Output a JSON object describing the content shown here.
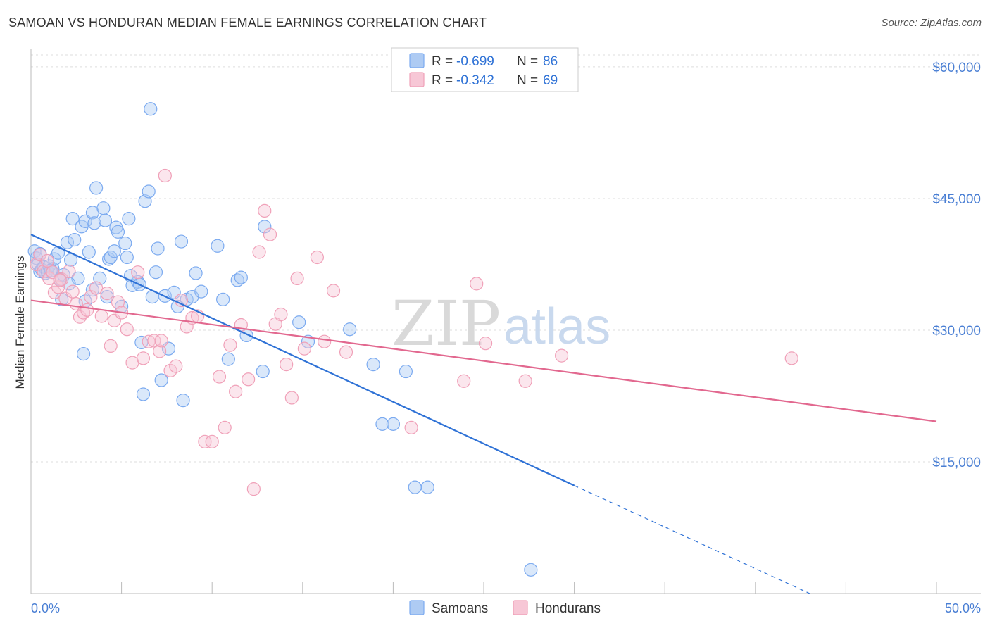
{
  "title": "SAMOAN VS HONDURAN MEDIAN FEMALE EARNINGS CORRELATION CHART",
  "source": "Source: ZipAtlas.com",
  "watermark": {
    "zip": "ZIP",
    "atlas": "atlas"
  },
  "colors": {
    "samoan": "#7baaf0",
    "samoan_fill": "#aecbf3",
    "samoan_line": "#2f72d6",
    "honduran": "#f0a0b8",
    "honduran_fill": "#f7c7d6",
    "honduran_line": "#e2688f",
    "axis_text": "#4a7fd4",
    "grid": "#dddddd"
  },
  "legend": {
    "samoan": {
      "r_label": "R =",
      "r_value": "-0.699",
      "n_label": "N =",
      "n_value": "86"
    },
    "honduran": {
      "r_label": "R =",
      "r_value": "-0.342",
      "n_label": "N =",
      "n_value": "69"
    }
  },
  "bottom_legend": [
    "Samoans",
    "Hondurans"
  ],
  "chart_data": {
    "type": "scatter",
    "title": "SAMOAN VS HONDURAN MEDIAN FEMALE EARNINGS CORRELATION CHART",
    "xlabel": "",
    "ylabel": "Median Female Earnings",
    "xlim": [
      0,
      50
    ],
    "ylim": [
      0,
      62000
    ],
    "x_tick_labels": [
      "0.0%",
      "50.0%"
    ],
    "y_ticks": [
      15000,
      30000,
      45000,
      60000
    ],
    "y_tick_labels": [
      "$15,000",
      "$30,000",
      "$45,000",
      "$60,000"
    ],
    "grid": true,
    "legend_position": "top-center",
    "series": [
      {
        "name": "Samoans",
        "trend": {
          "x0": 0.0,
          "y0": 40900,
          "x1": 30.0,
          "y1": 12300,
          "dashed_to_x": 43.0,
          "dashed_to_y": 0
        },
        "points": [
          [
            0.2,
            39000
          ],
          [
            0.3,
            38200
          ],
          [
            0.4,
            37500
          ],
          [
            0.5,
            36700
          ],
          [
            0.6,
            36900
          ],
          [
            0.7,
            37200
          ],
          [
            0.8,
            36500
          ],
          [
            0.9,
            36700
          ],
          [
            1.0,
            37300
          ],
          [
            1.2,
            37000
          ],
          [
            1.3,
            38100
          ],
          [
            1.5,
            38800
          ],
          [
            1.6,
            35800
          ],
          [
            1.7,
            33500
          ],
          [
            1.8,
            36300
          ],
          [
            2.0,
            40000
          ],
          [
            2.2,
            38000
          ],
          [
            2.3,
            42700
          ],
          [
            2.4,
            40300
          ],
          [
            2.6,
            35900
          ],
          [
            2.8,
            41800
          ],
          [
            3.0,
            42400
          ],
          [
            3.2,
            38900
          ],
          [
            3.4,
            43400
          ],
          [
            3.5,
            42200
          ],
          [
            3.6,
            46200
          ],
          [
            3.8,
            35900
          ],
          [
            4.0,
            43900
          ],
          [
            4.1,
            42500
          ],
          [
            4.3,
            38100
          ],
          [
            4.4,
            38300
          ],
          [
            4.6,
            39000
          ],
          [
            4.7,
            41700
          ],
          [
            4.8,
            41200
          ],
          [
            5.0,
            32700
          ],
          [
            5.2,
            39900
          ],
          [
            5.3,
            38300
          ],
          [
            5.4,
            42700
          ],
          [
            5.6,
            35100
          ],
          [
            5.9,
            35500
          ],
          [
            6.1,
            28600
          ],
          [
            6.3,
            44700
          ],
          [
            6.5,
            45800
          ],
          [
            6.7,
            33800
          ],
          [
            6.9,
            36600
          ],
          [
            7.0,
            39300
          ],
          [
            7.2,
            24300
          ],
          [
            7.4,
            33900
          ],
          [
            7.6,
            27900
          ],
          [
            7.9,
            34300
          ],
          [
            8.1,
            32700
          ],
          [
            8.3,
            40100
          ],
          [
            8.6,
            33500
          ],
          [
            8.9,
            33800
          ],
          [
            9.1,
            36500
          ],
          [
            9.4,
            34400
          ],
          [
            10.3,
            39600
          ],
          [
            10.6,
            33500
          ],
          [
            10.9,
            26700
          ],
          [
            11.4,
            35700
          ],
          [
            11.6,
            36000
          ],
          [
            11.9,
            29400
          ],
          [
            12.8,
            25300
          ],
          [
            12.9,
            41800
          ],
          [
            14.8,
            30900
          ],
          [
            15.3,
            28700
          ],
          [
            17.6,
            30100
          ],
          [
            18.9,
            26100
          ],
          [
            19.4,
            19300
          ],
          [
            20.0,
            19300
          ],
          [
            20.7,
            25300
          ],
          [
            21.2,
            12100
          ],
          [
            21.9,
            12100
          ],
          [
            27.6,
            2700
          ],
          [
            6.6,
            55200
          ],
          [
            2.9,
            27300
          ],
          [
            3.4,
            34600
          ],
          [
            4.2,
            33800
          ],
          [
            5.5,
            36200
          ],
          [
            6.0,
            35200
          ],
          [
            2.1,
            35300
          ],
          [
            1.1,
            36800
          ],
          [
            0.5,
            38700
          ],
          [
            8.4,
            22000
          ],
          [
            6.2,
            22700
          ],
          [
            3.0,
            33300
          ]
        ]
      },
      {
        "name": "Hondurans",
        "trend": {
          "x0": 0.0,
          "y0": 33400,
          "x1": 50.0,
          "y1": 19600
        },
        "points": [
          [
            0.3,
            37500
          ],
          [
            0.5,
            38600
          ],
          [
            0.7,
            36700
          ],
          [
            0.9,
            37900
          ],
          [
            1.0,
            35900
          ],
          [
            1.2,
            36600
          ],
          [
            1.3,
            34300
          ],
          [
            1.5,
            34900
          ],
          [
            1.7,
            35800
          ],
          [
            1.9,
            33600
          ],
          [
            2.1,
            36700
          ],
          [
            2.3,
            34400
          ],
          [
            2.5,
            33000
          ],
          [
            2.7,
            31500
          ],
          [
            2.9,
            32000
          ],
          [
            3.1,
            32300
          ],
          [
            3.3,
            33800
          ],
          [
            3.6,
            34800
          ],
          [
            3.9,
            31600
          ],
          [
            4.2,
            34200
          ],
          [
            4.4,
            28200
          ],
          [
            4.6,
            31100
          ],
          [
            4.8,
            33200
          ],
          [
            5.0,
            32000
          ],
          [
            5.3,
            30100
          ],
          [
            5.6,
            26300
          ],
          [
            5.9,
            36600
          ],
          [
            6.2,
            26800
          ],
          [
            6.5,
            28700
          ],
          [
            6.8,
            28800
          ],
          [
            7.1,
            27600
          ],
          [
            7.4,
            47600
          ],
          [
            7.7,
            25400
          ],
          [
            8.0,
            25900
          ],
          [
            8.3,
            33400
          ],
          [
            8.6,
            30400
          ],
          [
            8.9,
            31400
          ],
          [
            9.2,
            31600
          ],
          [
            9.6,
            17300
          ],
          [
            10.0,
            17300
          ],
          [
            10.4,
            24700
          ],
          [
            10.7,
            18900
          ],
          [
            11.0,
            28300
          ],
          [
            11.3,
            23000
          ],
          [
            11.6,
            30600
          ],
          [
            12.0,
            24400
          ],
          [
            12.3,
            11900
          ],
          [
            12.6,
            38900
          ],
          [
            12.9,
            43600
          ],
          [
            13.2,
            40900
          ],
          [
            13.5,
            30700
          ],
          [
            13.8,
            31800
          ],
          [
            14.1,
            26100
          ],
          [
            14.4,
            22300
          ],
          [
            14.7,
            35900
          ],
          [
            15.1,
            27900
          ],
          [
            15.8,
            38300
          ],
          [
            16.2,
            28700
          ],
          [
            16.7,
            34500
          ],
          [
            17.4,
            27500
          ],
          [
            21.0,
            18900
          ],
          [
            23.9,
            24200
          ],
          [
            24.6,
            35300
          ],
          [
            25.1,
            28500
          ],
          [
            27.3,
            24200
          ],
          [
            29.3,
            27100
          ],
          [
            42.0,
            26800
          ],
          [
            1.6,
            35700
          ],
          [
            7.2,
            28800
          ]
        ]
      }
    ]
  }
}
